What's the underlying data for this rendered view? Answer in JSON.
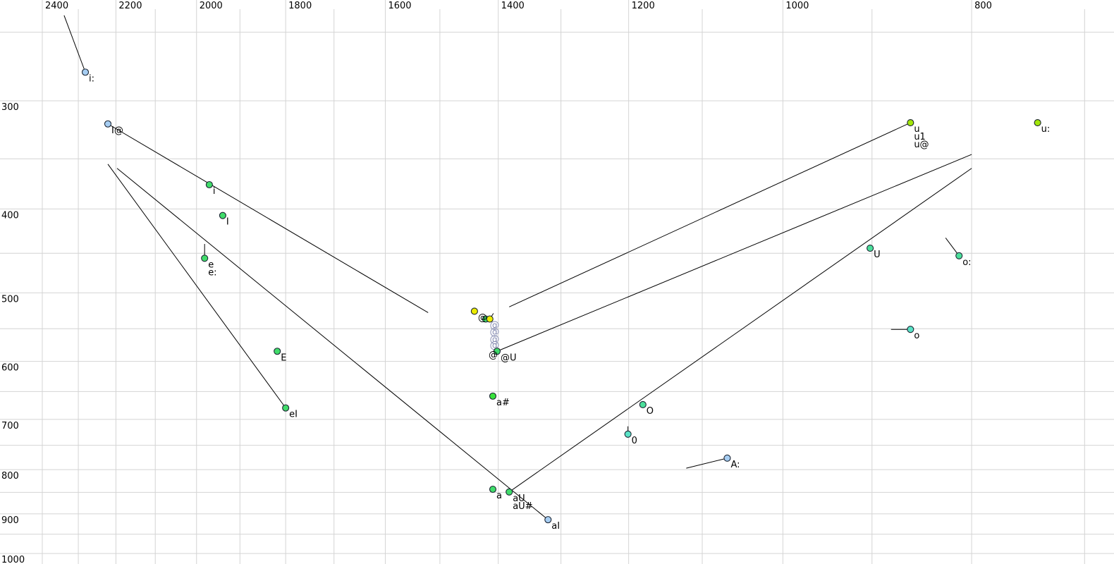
{
  "chart_data": {
    "type": "scatter",
    "description": "Vowel formant plot (F2 horizontal, F1 vertical, both log-scaled and reversed-high-to-low on x)",
    "x_axis": {
      "scale": "log",
      "reversed": true,
      "labeled_ticks": [
        2400,
        2200,
        2000,
        1800,
        1600,
        1400,
        1200,
        1000,
        800
      ],
      "minor_gridlines": [
        2300,
        2100,
        1900,
        1700,
        1500,
        1300,
        1100,
        900,
        700
      ]
    },
    "y_axis": {
      "scale": "log",
      "labeled_ticks": [
        300,
        400,
        500,
        600,
        700,
        800,
        900,
        1000
      ],
      "minor_gridlines": [
        250,
        350,
        450,
        550,
        650,
        750,
        850,
        950
      ]
    },
    "points": [
      {
        "label": "i:",
        "f2": 2281,
        "f1": 278,
        "color": "blue",
        "line_to": {
          "f2": 2339,
          "f1": 239
        }
      },
      {
        "label": "I@",
        "f2": 2221,
        "f1": 319,
        "color": "blue",
        "line_to": {
          "f2": 1521,
          "f1": 527
        }
      },
      {
        "label": "i",
        "f2": 1970,
        "f1": 375,
        "color": "green"
      },
      {
        "label": "I",
        "f2": 1939,
        "f1": 407,
        "color": "green"
      },
      {
        "label": "e",
        "f2": 1981,
        "f1": 456,
        "color": "green",
        "extra_labels": [
          "e:"
        ],
        "line_to": {
          "f2": 1981,
          "f1": 439
        }
      },
      {
        "label": "E",
        "f2": 1818,
        "f1": 584,
        "color": "green"
      },
      {
        "label": "eI",
        "f2": 1800,
        "f1": 679,
        "color": "green",
        "line_to": {
          "f2": 2221,
          "f1": 355
        }
      },
      {
        "label": "@",
        "f2": 1440,
        "f1": 525,
        "color": "yellow"
      },
      {
        "label": "",
        "f2": 1421,
        "f1": 536,
        "color": "green"
      },
      {
        "label": "",
        "f2": 1414,
        "f1": 536,
        "color": "yellow",
        "line_to": {
          "f2": 1408,
          "f1": 528
        }
      },
      {
        "label": "@U",
        "f2": 1402,
        "f1": 584,
        "color": "green",
        "pre_label": "@",
        "line_to": {
          "f2": 800,
          "f1": 346
        }
      },
      {
        "label": "a#",
        "f2": 1409,
        "f1": 658,
        "color": "green2"
      },
      {
        "label": "a",
        "f2": 1409,
        "f1": 843,
        "color": "green"
      },
      {
        "label": "aU",
        "f2": 1382,
        "f1": 849,
        "color": "green",
        "extra_labels": [
          "aU#"
        ],
        "line_to": {
          "f2": 800,
          "f1": 359
        }
      },
      {
        "label": "aI",
        "f2": 1320,
        "f1": 914,
        "color": "blue",
        "line_to": {
          "f2": 2197,
          "f1": 359
        }
      },
      {
        "label": "O",
        "f2": 1180,
        "f1": 673,
        "color": "seagreen"
      },
      {
        "label": "0",
        "f2": 1201,
        "f1": 728,
        "color": "turquoise",
        "line_to": {
          "f2": 1201,
          "f1": 713
        }
      },
      {
        "label": "A:",
        "f2": 1068,
        "f1": 776,
        "color": "blue",
        "line_to": {
          "f2": 1121,
          "f1": 797
        }
      },
      {
        "label": "U",
        "f2": 902,
        "f1": 444,
        "color": "seagreen"
      },
      {
        "label": "o",
        "f2": 860,
        "f1": 551,
        "color": "turquoise",
        "line_to": {
          "f2": 880,
          "f1": 551
        }
      },
      {
        "label": "o:",
        "f2": 812,
        "f1": 453,
        "color": "seagreen",
        "line_to": {
          "f2": 825,
          "f1": 432
        }
      },
      {
        "label": "u",
        "f2": 860,
        "f1": 318,
        "color": "chartreuse",
        "extra_labels": [
          "u1",
          "u@"
        ],
        "line_to": {
          "f2": 1382,
          "f1": 519
        }
      },
      {
        "label": "u:",
        "f2": 740,
        "f1": 318,
        "color": "chartreuse"
      }
    ],
    "glyph_markers": [
      {
        "glyph": "@",
        "f2": 1406,
        "f1": 544
      },
      {
        "glyph": "@",
        "f2": 1406,
        "f1": 554
      },
      {
        "glyph": "@",
        "f2": 1406,
        "f1": 565
      },
      {
        "glyph": "@",
        "f2": 1406,
        "f1": 574
      }
    ],
    "colors": {
      "blue": "#a6cdf2",
      "green": "#40dc6a",
      "green2": "#38e23c",
      "seagreen": "#4bdf9a",
      "turquoise": "#5ae3c6",
      "chartreuse": "#a2e60a",
      "yellow": "#ebeb00",
      "marker_stroke": "#1c2533",
      "glyph_gray": "#8b91b5",
      "trajectory_line": "#000000",
      "grid": "#d4d4d4",
      "text": "#000000",
      "background": "#ffffff"
    }
  }
}
